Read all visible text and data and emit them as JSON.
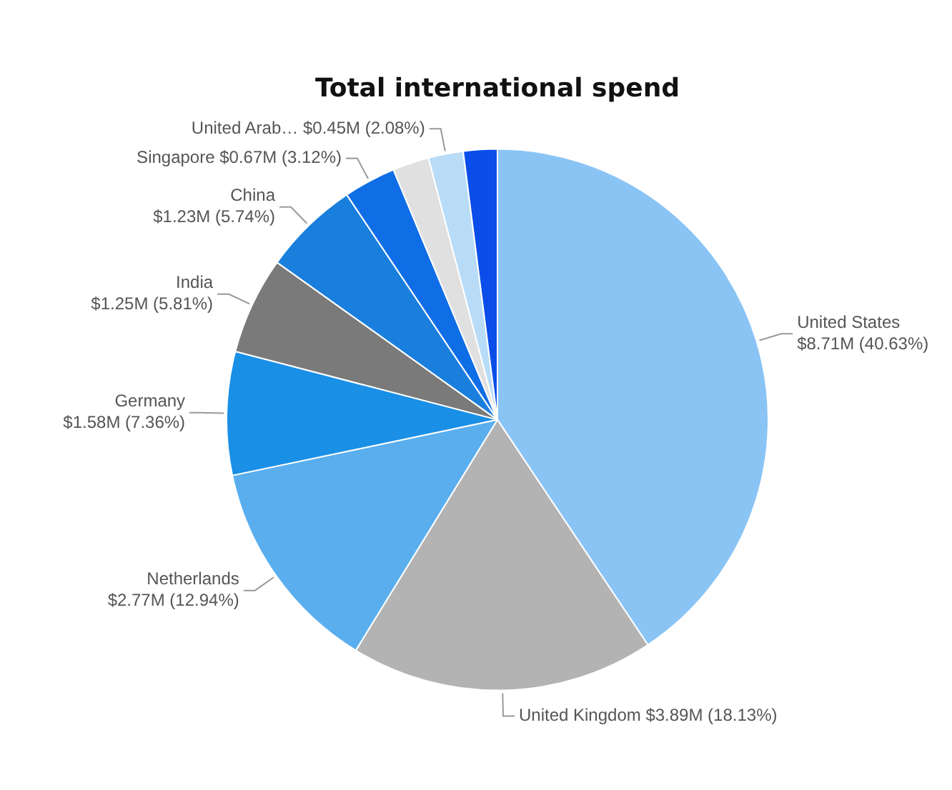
{
  "chart_data": {
    "type": "pie",
    "title": "Total international spend",
    "categories": [
      "United States",
      "United Kingdom",
      "Netherlands",
      "Germany",
      "India",
      "China",
      "Singapore",
      null,
      "United Arab…",
      null
    ],
    "values": [
      40.63,
      18.13,
      12.94,
      7.36,
      5.81,
      5.74,
      3.12,
      2.17,
      2.08,
      2.02
    ],
    "colors": [
      "#8ac4f5",
      "#b3b3b3",
      "#5aaeee",
      "#1a8fe6",
      "#7a7a7a",
      "#1a7fdc",
      "#0f6ee6",
      "#e0e0e0",
      "#b8dcf8",
      "#0a4de8"
    ],
    "value_labels": [
      "$8.71M (40.63%)",
      "$3.89M (18.13%)",
      "$2.77M (12.94%)",
      "$1.58M (7.36%)",
      "$1.25M (5.81%)",
      "$1.23M (5.74%)",
      "$0.67M (3.12%)",
      null,
      "$0.45M (2.08%)",
      null
    ]
  }
}
